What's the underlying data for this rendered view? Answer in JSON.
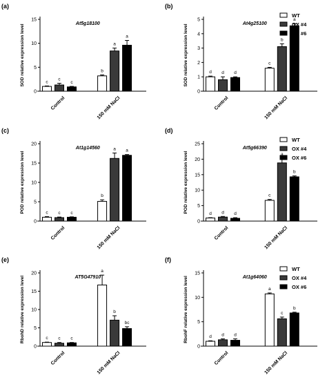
{
  "figure": {
    "legend": [
      {
        "name": "WT",
        "color": "#ffffff"
      },
      {
        "name": "OX #4",
        "color": "#3a3a3a"
      },
      {
        "name": "OX #6",
        "color": "#000000"
      }
    ],
    "x_categories": [
      "Control",
      "150 mM NaCl"
    ]
  },
  "chart_data": [
    {
      "type": "bar",
      "panel": "(a)",
      "title": "At5g18100",
      "ylabel": "SOD relative expression level",
      "ylim": [
        0,
        15
      ],
      "yticks": [
        0,
        5,
        10,
        15
      ],
      "categories": [
        "Control",
        "150 mM NaCl"
      ],
      "series": [
        {
          "name": "WT",
          "values": [
            1.0,
            3.2
          ],
          "errors": [
            0.1,
            0.2
          ],
          "letters": [
            "c",
            "b"
          ]
        },
        {
          "name": "OX #4",
          "values": [
            1.3,
            8.4
          ],
          "errors": [
            0.35,
            0.6
          ],
          "letters": [
            "c",
            "a"
          ]
        },
        {
          "name": "OX #6",
          "values": [
            0.9,
            9.6
          ],
          "errors": [
            0.1,
            1.0
          ],
          "letters": [
            "c",
            "a"
          ]
        }
      ]
    },
    {
      "type": "bar",
      "panel": "(b)",
      "title": "At4g25100",
      "ylabel": "SOD relative expression level",
      "ylim": [
        0,
        5
      ],
      "yticks": [
        0,
        1,
        2,
        3,
        4,
        5
      ],
      "categories": [
        "Control",
        "150 mM NaCl"
      ],
      "series": [
        {
          "name": "WT",
          "values": [
            1.0,
            1.6
          ],
          "errors": [
            0.05,
            0.06
          ],
          "letters": [
            "d",
            "c"
          ]
        },
        {
          "name": "OX #4",
          "values": [
            0.8,
            3.1
          ],
          "errors": [
            0.2,
            0.2
          ],
          "letters": [
            "d",
            "b"
          ]
        },
        {
          "name": "OX #6",
          "values": [
            0.95,
            4.55
          ],
          "errors": [
            0.05,
            0.15
          ],
          "letters": [
            "d",
            "a"
          ]
        }
      ]
    },
    {
      "type": "bar",
      "panel": "(c)",
      "title": "At1g14560",
      "ylabel": "POD relative expression level",
      "ylim": [
        0,
        20
      ],
      "yticks": [
        0,
        5,
        10,
        15,
        20
      ],
      "categories": [
        "Control",
        "150 mM NaCl"
      ],
      "series": [
        {
          "name": "WT",
          "values": [
            1.0,
            5.1
          ],
          "errors": [
            0.15,
            0.4
          ],
          "letters": [
            "c",
            "b"
          ]
        },
        {
          "name": "OX #4",
          "values": [
            0.9,
            16.2
          ],
          "errors": [
            0.15,
            1.4
          ],
          "letters": [
            "c",
            "a"
          ]
        },
        {
          "name": "OX #6",
          "values": [
            1.0,
            17.0
          ],
          "errors": [
            0.1,
            0.2
          ],
          "letters": [
            "c",
            "a"
          ]
        }
      ]
    },
    {
      "type": "bar",
      "panel": "(d)",
      "title": "At5g66390",
      "ylabel": "POD relative expression level",
      "ylim": [
        0,
        25
      ],
      "yticks": [
        0,
        5,
        10,
        15,
        20,
        25
      ],
      "categories": [
        "Control",
        "150 mM NaCl"
      ],
      "series": [
        {
          "name": "WT",
          "values": [
            1.0,
            6.7
          ],
          "errors": [
            0.1,
            0.3
          ],
          "letters": [
            "d",
            "c"
          ]
        },
        {
          "name": "OX #4",
          "values": [
            1.3,
            18.8
          ],
          "errors": [
            0.2,
            1.5
          ],
          "letters": [
            "d",
            "a"
          ]
        },
        {
          "name": "OX #6",
          "values": [
            0.9,
            14.3
          ],
          "errors": [
            0.2,
            0.3
          ],
          "letters": [
            "d",
            "b"
          ]
        }
      ]
    },
    {
      "type": "bar",
      "panel": "(e)",
      "title": "AT5G47910",
      "ylabel": "RbohD relative expression level",
      "ylim": [
        0,
        20
      ],
      "yticks": [
        0,
        5,
        10,
        15,
        20
      ],
      "categories": [
        "Control",
        "150 mM NaCl"
      ],
      "series": [
        {
          "name": "WT",
          "values": [
            1.0,
            16.7
          ],
          "errors": [
            0.1,
            2.7
          ],
          "letters": [
            "c",
            "a"
          ]
        },
        {
          "name": "OX #4",
          "values": [
            0.8,
            7.1
          ],
          "errors": [
            0.2,
            1.2
          ],
          "letters": [
            "c",
            "b"
          ]
        },
        {
          "name": "OX #6",
          "values": [
            0.9,
            4.8
          ],
          "errors": [
            0.1,
            0.5
          ],
          "letters": [
            "c",
            "bc"
          ]
        }
      ]
    },
    {
      "type": "bar",
      "panel": "(f)",
      "title": "At1g64060",
      "ylabel": "RbohF relative expression level",
      "ylim": [
        0,
        15
      ],
      "yticks": [
        0,
        5,
        10,
        15
      ],
      "categories": [
        "Control",
        "150 mM NaCl"
      ],
      "series": [
        {
          "name": "WT",
          "values": [
            1.0,
            10.7
          ],
          "errors": [
            0.1,
            0.2
          ],
          "letters": [
            "d",
            "a"
          ]
        },
        {
          "name": "OX #4",
          "values": [
            1.3,
            5.6
          ],
          "errors": [
            0.2,
            0.35
          ],
          "letters": [
            "d",
            "c"
          ]
        },
        {
          "name": "OX #6",
          "values": [
            1.2,
            6.8
          ],
          "errors": [
            0.3,
            0.15
          ],
          "letters": [
            "d",
            "b"
          ]
        }
      ]
    }
  ]
}
